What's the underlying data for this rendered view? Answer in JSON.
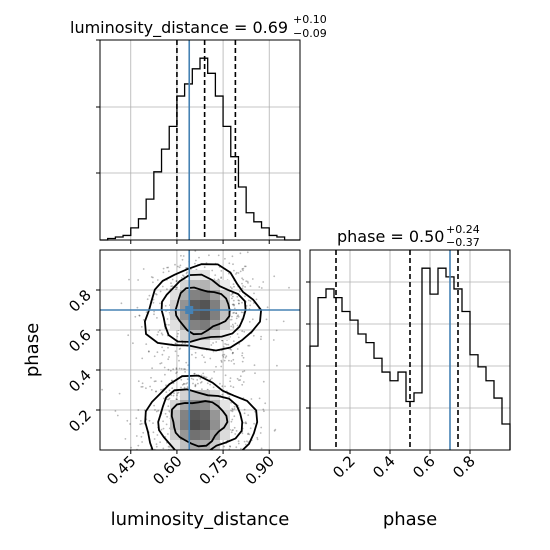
{
  "chart_data": [
    {
      "panel": "luminosity_distance marginal",
      "type": "histogram",
      "xlim": [
        0.35,
        1.0
      ],
      "title": {
        "prefix": "luminosity_distance = 0.69",
        "plus": "+0.10",
        "minus": "−0.09"
      },
      "bin_edges": [
        0.35,
        0.375,
        0.4,
        0.425,
        0.45,
        0.475,
        0.5,
        0.525,
        0.55,
        0.575,
        0.6,
        0.625,
        0.65,
        0.675,
        0.7,
        0.725,
        0.75,
        0.775,
        0.8,
        0.825,
        0.85,
        0.875,
        0.9,
        0.925,
        0.95,
        0.975,
        1.0
      ],
      "counts": [
        0,
        1,
        2,
        3,
        8,
        14,
        27,
        45,
        60,
        75,
        95,
        103,
        113,
        120,
        110,
        95,
        75,
        55,
        35,
        18,
        12,
        8,
        3,
        2,
        0,
        0
      ],
      "quantiles": [
        0.6,
        0.69,
        0.79
      ],
      "truth": 0.64,
      "grid": true
    },
    {
      "panel": "luminosity_distance vs phase",
      "type": "scatter",
      "x_label": "luminosity_distance",
      "y_label": "phase",
      "xlim": [
        0.35,
        1.0
      ],
      "ylim": [
        0.0,
        1.0
      ],
      "x_ticks": [
        "0.45",
        "0.60",
        "0.75",
        "0.90"
      ],
      "x_tick_values": [
        0.45,
        0.6,
        0.75,
        0.9
      ],
      "y_ticks": [
        "0.2",
        "0.4",
        "0.6",
        "0.8"
      ],
      "y_tick_values": [
        0.2,
        0.4,
        0.6,
        0.8
      ],
      "truth": [
        0.64,
        0.7
      ],
      "density_centers": [
        [
          0.68,
          0.7
        ],
        [
          0.67,
          0.14
        ]
      ],
      "grid": true
    },
    {
      "panel": "phase marginal",
      "type": "histogram",
      "x_label": "phase",
      "xlim": [
        0.0,
        1.0
      ],
      "x_ticks": [
        "0.2",
        "0.4",
        "0.6",
        "0.8"
      ],
      "x_tick_values": [
        0.2,
        0.4,
        0.6,
        0.8
      ],
      "title": {
        "prefix": "phase = 0.50",
        "plus": "+0.24",
        "minus": "−0.37"
      },
      "bin_edges": [
        0.0,
        0.04,
        0.08,
        0.12,
        0.16,
        0.2,
        0.24,
        0.28,
        0.32,
        0.36,
        0.4,
        0.44,
        0.48,
        0.52,
        0.56,
        0.6,
        0.64,
        0.68,
        0.72,
        0.76,
        0.8,
        0.84,
        0.88,
        0.92,
        0.96,
        1.0
      ],
      "counts": [
        60,
        88,
        93,
        88,
        80,
        75,
        67,
        62,
        53,
        45,
        40,
        45,
        28,
        33,
        105,
        90,
        105,
        100,
        93,
        80,
        55,
        48,
        40,
        30,
        15
      ],
      "quantiles": [
        0.13,
        0.5,
        0.74
      ],
      "truth": 0.7,
      "grid": true
    }
  ]
}
